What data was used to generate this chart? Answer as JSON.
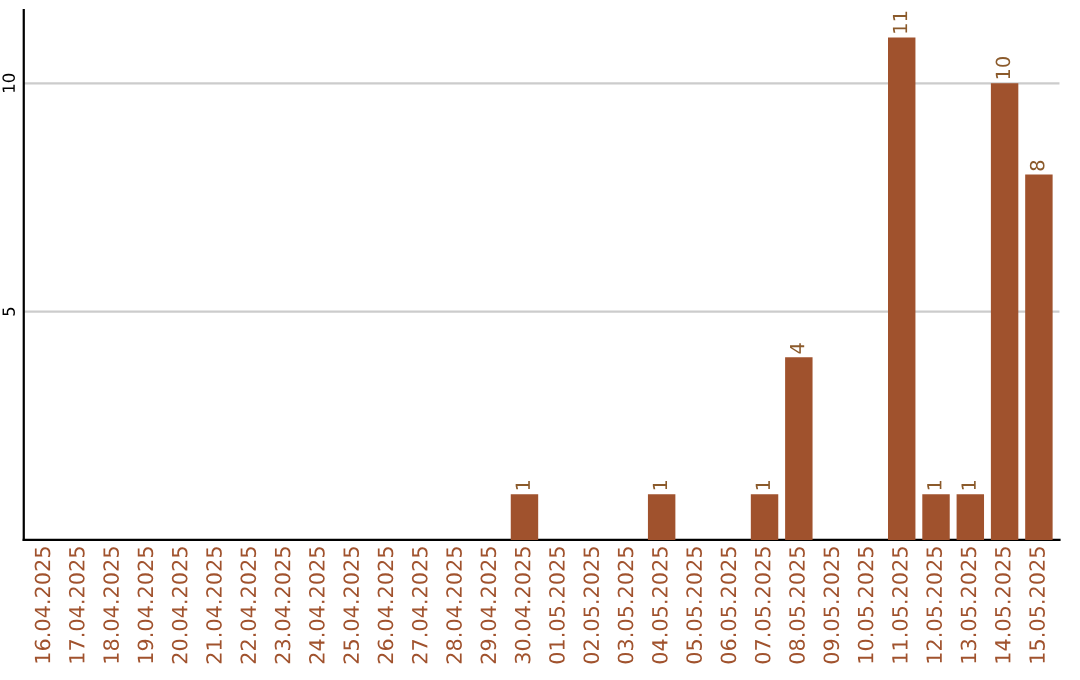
{
  "chart_data": {
    "type": "bar",
    "categories": [
      "16.04.2025",
      "17.04.2025",
      "18.04.2025",
      "19.04.2025",
      "20.04.2025",
      "21.04.2025",
      "22.04.2025",
      "23.04.2025",
      "24.04.2025",
      "25.04.2025",
      "26.04.2025",
      "27.04.2025",
      "28.04.2025",
      "29.04.2025",
      "30.04.2025",
      "01.05.2025",
      "02.05.2025",
      "03.05.2025",
      "04.05.2025",
      "05.05.2025",
      "06.05.2025",
      "07.05.2025",
      "08.05.2025",
      "09.05.2025",
      "10.05.2025",
      "11.05.2025",
      "12.05.2025",
      "13.05.2025",
      "14.05.2025",
      "15.05.2025"
    ],
    "values": [
      0,
      0,
      0,
      0,
      0,
      0,
      0,
      0,
      0,
      0,
      0,
      0,
      0,
      0,
      1,
      0,
      0,
      0,
      1,
      0,
      0,
      1,
      4,
      0,
      0,
      11,
      1,
      1,
      10,
      8
    ],
    "value_labels": [
      null,
      null,
      null,
      null,
      null,
      null,
      null,
      null,
      null,
      null,
      null,
      null,
      null,
      null,
      "1",
      null,
      null,
      null,
      "1",
      null,
      null,
      "1",
      "4",
      null,
      null,
      "11",
      "1",
      "1",
      "10",
      "8"
    ],
    "color": "#a0522d",
    "ylim": [
      0,
      11.6
    ],
    "yticks": [
      5,
      10
    ],
    "grid": "y"
  }
}
